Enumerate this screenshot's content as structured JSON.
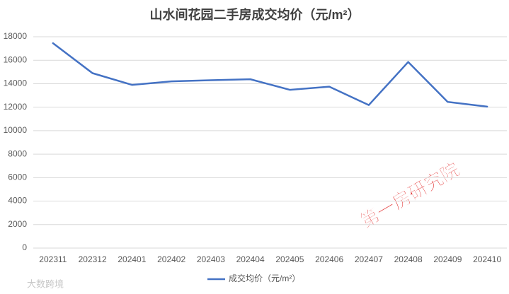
{
  "chart_data": {
    "type": "line",
    "title": "山水间花园二手房成交均价（元/m²）",
    "categories": [
      "202311",
      "202312",
      "202401",
      "202402",
      "202403",
      "202404",
      "202405",
      "202406",
      "202407",
      "202408",
      "202409",
      "202410"
    ],
    "series": [
      {
        "name": "成交均价（元/m²）",
        "color": "#4472c4",
        "values": [
          17450,
          14900,
          13900,
          14200,
          14300,
          14380,
          13480,
          13750,
          12180,
          15850,
          12450,
          12050
        ]
      }
    ],
    "ylim": [
      0,
      18000
    ],
    "yticks": [
      0,
      2000,
      4000,
      6000,
      8000,
      10000,
      12000,
      14000,
      16000,
      18000
    ],
    "grid": true,
    "legend": "bottom"
  },
  "watermark": "第一房研究院",
  "source_logo": "大数跨境"
}
